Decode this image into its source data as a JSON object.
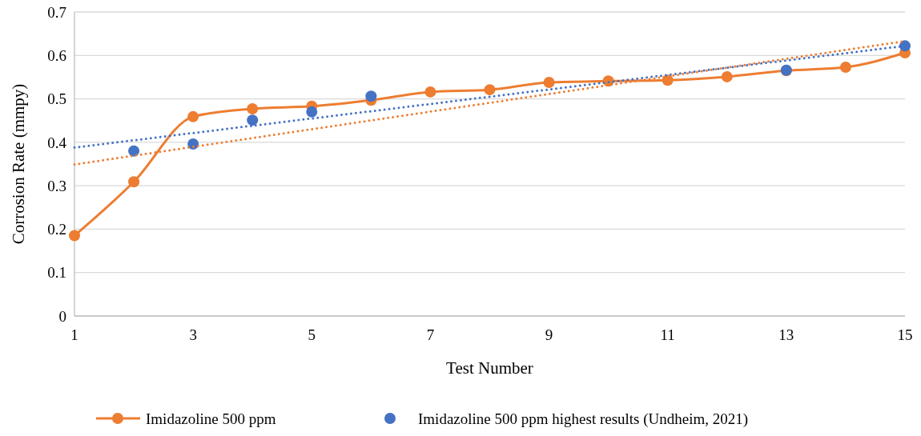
{
  "chart_data": {
    "type": "line",
    "xlabel": "Test Number",
    "ylabel": "Corrosion Rate (mmpy)",
    "x": [
      1,
      2,
      3,
      4,
      5,
      6,
      7,
      8,
      9,
      10,
      11,
      12,
      13,
      14,
      15
    ],
    "xlim": [
      1,
      15
    ],
    "xticks": [
      1,
      3,
      5,
      7,
      9,
      11,
      13,
      15
    ],
    "ylim": [
      0,
      0.7
    ],
    "yticks": [
      0,
      0.1,
      0.2,
      0.3,
      0.4,
      0.5,
      0.6,
      0.7
    ],
    "grid": "y",
    "legend": "bottom",
    "marker": "circle",
    "series": [
      {
        "name": "Imidazoline 500 ppm",
        "color": "#ed7d31",
        "line_style": "solid",
        "values": [
          0.185,
          0.309,
          0.459,
          0.477,
          0.483,
          0.497,
          0.516,
          0.521,
          0.538,
          0.541,
          0.543,
          0.551,
          0.565,
          0.573,
          0.606
        ]
      },
      {
        "name": "Imidazoline 500 ppm highest results (Undheim, 2021)",
        "type": "scatter",
        "color": "#4472c4",
        "x": [
          2,
          3,
          4,
          5,
          6,
          13,
          15
        ],
        "values": [
          0.38,
          0.396,
          0.451,
          0.47,
          0.506,
          0.566,
          0.622
        ]
      },
      {
        "type": "line",
        "color": "#ed7d31",
        "line_style": "dotted",
        "marker": "none",
        "x": [
          1,
          15
        ],
        "values": [
          0.349,
          0.633
        ]
      },
      {
        "type": "line",
        "color": "#4472c4",
        "line_style": "dotted",
        "marker": "none",
        "x": [
          1,
          15
        ],
        "values": [
          0.388,
          0.622
        ]
      }
    ]
  }
}
